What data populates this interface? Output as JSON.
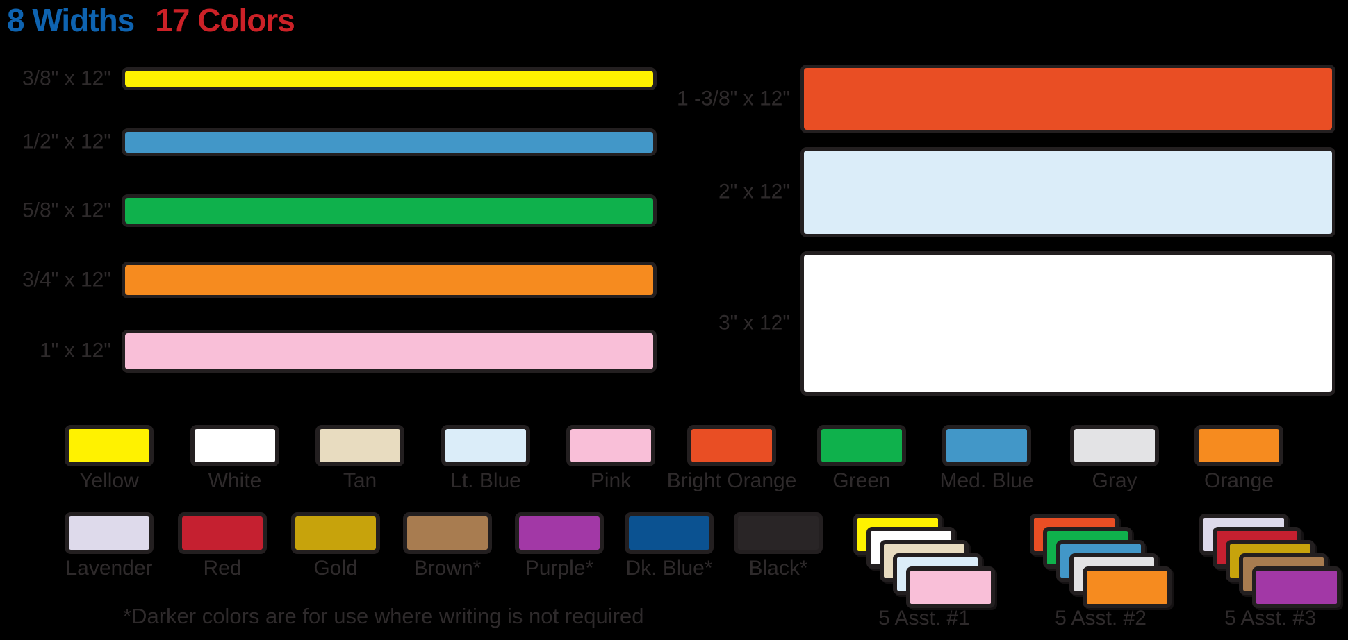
{
  "title": {
    "widths": "8 Widths",
    "colors": "17 Colors"
  },
  "title_colors": {
    "widths_hex": "#0E63B0",
    "colors_hex": "#CC2127"
  },
  "style": {
    "background": "#000000",
    "outline_hex": "#231F20",
    "label_text_hex": "#2E2A2B"
  },
  "palette": {
    "Yellow": "#FFF200",
    "White": "#FFFFFF",
    "Tan": "#E8DCC0",
    "Lt. Blue": "#DBEDF9",
    "Pink": "#F9BFD8",
    "Bright Orange": "#E94E24",
    "Green": "#0FB14C",
    "Med. Blue": "#4297C8",
    "Gray": "#E3E3E5",
    "Lavender": "#DEDAEB",
    "Red": "#C52030",
    "Gold": "#C7A30C",
    "Brown": "#A87C50",
    "Purple": "#A238A6",
    "Dk. Blue": "#0B5291",
    "Black": "#292526",
    "Orange": "#F68B1F"
  },
  "size_bars": {
    "left": [
      {
        "label": "3/8\" x 12\"",
        "color": "Yellow"
      },
      {
        "label": "1/2\" x 12\"",
        "color": "Med. Blue"
      },
      {
        "label": "5/8\" x 12\"",
        "color": "Green"
      },
      {
        "label": "3/4\" x 12\"",
        "color": "Orange"
      },
      {
        "label": "1\" x 12\"",
        "color": "Pink"
      }
    ],
    "right": [
      {
        "label": "1 -3/8\" x 12\"",
        "color": "Bright Orange"
      },
      {
        "label": "2\" x 12\"",
        "color": "Lt. Blue"
      },
      {
        "label": "3\" x 12\"",
        "color": "White"
      }
    ]
  },
  "swatch_rows": [
    {
      "labels": [
        "Yellow",
        "White",
        "Tan",
        "Lt. Blue",
        "Pink",
        "Bright Orange",
        "Green",
        "Med. Blue",
        "Gray",
        "Orange"
      ]
    },
    {
      "labels": [
        "Lavender",
        "Red",
        "Gold",
        "Brown*",
        "Purple*",
        "Dk. Blue*",
        "Black*"
      ]
    }
  ],
  "assortments": [
    {
      "label": "5 Asst. #1",
      "colors": [
        "Yellow",
        "White",
        "Tan",
        "Lt. Blue",
        "Pink"
      ]
    },
    {
      "label": "5 Asst. #2",
      "colors": [
        "Bright Orange",
        "Green",
        "Med. Blue",
        "Gray",
        "Orange"
      ]
    },
    {
      "label": "5 Asst. #3",
      "colors": [
        "Lavender",
        "Red",
        "Gold",
        "Brown",
        "Purple"
      ]
    }
  ],
  "footnote": "*Darker colors are for use where writing is not required"
}
